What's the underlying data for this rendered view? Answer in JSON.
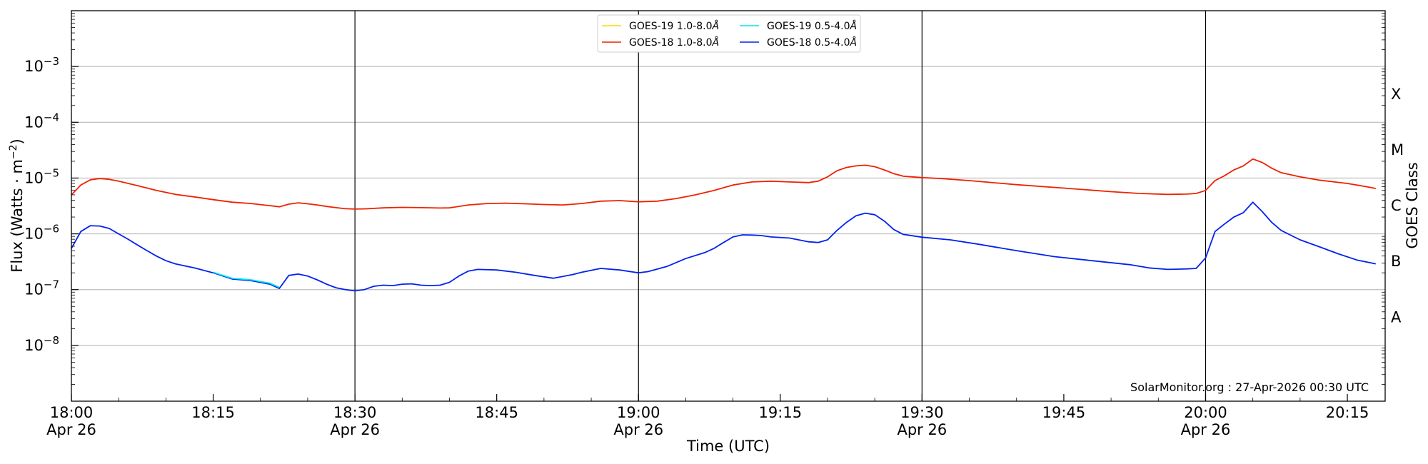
{
  "chart_data": {
    "type": "line",
    "title": "",
    "xlabel": "Time (UTC)",
    "ylabel": "Flux (Watts · m",
    "ylabel_sup": "−2",
    "ylabel_close": ")",
    "y2label": "GOES Class",
    "yscale": "log",
    "ylim": [
      1e-09,
      0.01
    ],
    "xlim": [
      "2026-04-26T18:00",
      "2026-04-26T20:19"
    ],
    "grid": true,
    "legend": "top-center",
    "x_ticks": [
      {
        "time": "18:00",
        "line1": "18:00",
        "line2": "Apr 26"
      },
      {
        "time": "18:15",
        "line1": "18:15",
        "line2": ""
      },
      {
        "time": "18:30",
        "line1": "18:30",
        "line2": "Apr 26"
      },
      {
        "time": "18:45",
        "line1": "18:45",
        "line2": ""
      },
      {
        "time": "19:00",
        "line1": "19:00",
        "line2": "Apr 26"
      },
      {
        "time": "19:15",
        "line1": "19:15",
        "line2": ""
      },
      {
        "time": "19:30",
        "line1": "19:30",
        "line2": "Apr 26"
      },
      {
        "time": "19:45",
        "line1": "19:45",
        "line2": ""
      },
      {
        "time": "20:00",
        "line1": "20:00",
        "line2": "Apr 26"
      },
      {
        "time": "20:15",
        "line1": "20:15",
        "line2": ""
      }
    ],
    "vlines": [
      "18:30",
      "19:00",
      "19:30",
      "20:00"
    ],
    "y_ticks": [
      {
        "value": 0.001,
        "base": "10",
        "exp": "−3"
      },
      {
        "value": 0.0001,
        "base": "10",
        "exp": "−4"
      },
      {
        "value": 1e-05,
        "base": "10",
        "exp": "−5"
      },
      {
        "value": 1e-06,
        "base": "10",
        "exp": "−6"
      },
      {
        "value": 1e-07,
        "base": "10",
        "exp": "−7"
      },
      {
        "value": 1e-08,
        "base": "10",
        "exp": "−8"
      }
    ],
    "goes_classes": [
      {
        "label": "X",
        "value": 0.00032
      },
      {
        "label": "M",
        "value": 3.2e-05
      },
      {
        "label": "C",
        "value": 3.2e-06
      },
      {
        "label": "B",
        "value": 3.2e-07
      },
      {
        "label": "A",
        "value": 3.2e-08
      }
    ],
    "legend_entries": [
      {
        "label": "GOES-19 1.0-8.0",
        "unit": "Å",
        "color": "#ffd700"
      },
      {
        "label": "GOES-19 0.5-4.0",
        "unit": "Å",
        "color": "#00e5ee"
      },
      {
        "label": "GOES-18 1.0-8.0",
        "unit": "Å",
        "color": "#ee2200"
      },
      {
        "label": "GOES-18 0.5-4.0",
        "unit": "Å",
        "color": "#0022ee"
      }
    ],
    "series": [
      {
        "name": "GOES-18 1.0-8.0Å",
        "color": "#ee2200",
        "x": [
          "18:00",
          "18:01",
          "18:02",
          "18:03",
          "18:04",
          "18:05",
          "18:07",
          "18:09",
          "18:11",
          "18:13",
          "18:15",
          "18:17",
          "18:19",
          "18:21",
          "18:22",
          "18:23",
          "18:24",
          "18:25",
          "18:26",
          "18:27",
          "18:28",
          "18:29",
          "18:30",
          "18:31",
          "18:33",
          "18:35",
          "18:37",
          "18:39",
          "18:40",
          "18:42",
          "18:44",
          "18:46",
          "18:48",
          "18:50",
          "18:52",
          "18:54",
          "18:56",
          "18:58",
          "19:00",
          "19:02",
          "19:04",
          "19:06",
          "19:08",
          "19:10",
          "19:12",
          "19:14",
          "19:16",
          "19:18",
          "19:19",
          "19:20",
          "19:21",
          "19:22",
          "19:23",
          "19:24",
          "19:25",
          "19:26",
          "19:27",
          "19:28",
          "19:30",
          "19:32",
          "19:35",
          "19:40",
          "19:45",
          "19:50",
          "19:53",
          "19:56",
          "19:58",
          "19:59",
          "20:00",
          "20:01",
          "20:02",
          "20:03",
          "20:04",
          "20:05",
          "20:06",
          "20:07",
          "20:08",
          "20:10",
          "20:12",
          "20:15",
          "20:17",
          "20:18"
        ],
        "values": [
          5e-06,
          7.5e-06,
          9.3e-06,
          9.8e-06,
          9.5e-06,
          8.8e-06,
          7.3e-06,
          6e-06,
          5.1e-06,
          4.6e-06,
          4.1e-06,
          3.7e-06,
          3.5e-06,
          3.2e-06,
          3.05e-06,
          3.4e-06,
          3.6e-06,
          3.45e-06,
          3.3e-06,
          3.1e-06,
          2.95e-06,
          2.82e-06,
          2.78e-06,
          2.8e-06,
          2.92e-06,
          2.98e-06,
          2.95e-06,
          2.9e-06,
          2.92e-06,
          3.3e-06,
          3.5e-06,
          3.55e-06,
          3.45e-06,
          3.35e-06,
          3.3e-06,
          3.5e-06,
          3.85e-06,
          3.95e-06,
          3.75e-06,
          3.85e-06,
          4.3e-06,
          5e-06,
          6e-06,
          7.5e-06,
          8.5e-06,
          8.8e-06,
          8.5e-06,
          8.3e-06,
          8.8e-06,
          1.05e-05,
          1.35e-05,
          1.55e-05,
          1.65e-05,
          1.7e-05,
          1.6e-05,
          1.4e-05,
          1.2e-05,
          1.08e-05,
          1.02e-05,
          9.8e-06,
          9e-06,
          7.6e-06,
          6.6e-06,
          5.7e-06,
          5.3e-06,
          5.1e-06,
          5.15e-06,
          5.3e-06,
          6e-06,
          9e-06,
          1.1e-05,
          1.4e-05,
          1.65e-05,
          2.2e-05,
          1.9e-05,
          1.5e-05,
          1.25e-05,
          1.05e-05,
          9.2e-06,
          8e-06,
          7e-06,
          6.5e-06
        ]
      },
      {
        "name": "GOES-18 0.5-4.0Å",
        "color": "#0022ee",
        "x": [
          "18:00",
          "18:01",
          "18:02",
          "18:03",
          "18:04",
          "18:05",
          "18:06",
          "18:07",
          "18:08",
          "18:09",
          "18:10",
          "18:11",
          "18:13",
          "18:15",
          "18:17",
          "18:19",
          "18:21",
          "18:22",
          "18:23",
          "18:24",
          "18:25",
          "18:26",
          "18:27",
          "18:28",
          "18:29",
          "18:30",
          "18:31",
          "18:32",
          "18:33",
          "18:34",
          "18:35",
          "18:36",
          "18:37",
          "18:38",
          "18:39",
          "18:40",
          "18:41",
          "18:42",
          "18:43",
          "18:45",
          "18:47",
          "18:49",
          "18:51",
          "18:53",
          "18:54",
          "18:56",
          "18:58",
          "19:00",
          "19:01",
          "19:03",
          "19:05",
          "19:07",
          "19:08",
          "19:09",
          "19:10",
          "19:11",
          "19:12",
          "19:13",
          "19:14",
          "19:16",
          "19:18",
          "19:19",
          "19:20",
          "19:21",
          "19:22",
          "19:23",
          "19:24",
          "19:25",
          "19:26",
          "19:27",
          "19:28",
          "19:30",
          "19:33",
          "19:36",
          "19:40",
          "19:44",
          "19:48",
          "19:52",
          "19:54",
          "19:56",
          "19:58",
          "19:59",
          "20:00",
          "20:01",
          "20:02",
          "20:03",
          "20:04",
          "20:05",
          "20:06",
          "20:07",
          "20:08",
          "20:10",
          "20:12",
          "20:14",
          "20:16",
          "20:18"
        ],
        "values": [
          5.5e-07,
          1.1e-06,
          1.4e-06,
          1.38e-06,
          1.25e-06,
          1e-06,
          8e-07,
          6.3e-07,
          5e-07,
          4e-07,
          3.3e-07,
          2.9e-07,
          2.45e-07,
          2e-07,
          1.55e-07,
          1.45e-07,
          1.25e-07,
          1.05e-07,
          1.8e-07,
          1.9e-07,
          1.75e-07,
          1.5e-07,
          1.25e-07,
          1.08e-07,
          1e-07,
          9.5e-08,
          1e-07,
          1.15e-07,
          1.2e-07,
          1.18e-07,
          1.25e-07,
          1.27e-07,
          1.2e-07,
          1.18e-07,
          1.2e-07,
          1.35e-07,
          1.75e-07,
          2.15e-07,
          2.3e-07,
          2.25e-07,
          2.05e-07,
          1.8e-07,
          1.6e-07,
          1.85e-07,
          2.05e-07,
          2.4e-07,
          2.25e-07,
          2e-07,
          2.1e-07,
          2.6e-07,
          3.6e-07,
          4.6e-07,
          5.5e-07,
          7e-07,
          8.8e-07,
          9.6e-07,
          9.5e-07,
          9.3e-07,
          8.8e-07,
          8.4e-07,
          7.2e-07,
          7e-07,
          7.8e-07,
          1.15e-06,
          1.6e-06,
          2.1e-06,
          2.35e-06,
          2.2e-06,
          1.7e-06,
          1.2e-06,
          9.8e-07,
          8.7e-07,
          7.8e-07,
          6.5e-07,
          5e-07,
          3.9e-07,
          3.3e-07,
          2.8e-07,
          2.45e-07,
          2.3e-07,
          2.35e-07,
          2.4e-07,
          3.7e-07,
          1.1e-06,
          1.5e-06,
          2e-06,
          2.4e-06,
          3.7e-06,
          2.5e-06,
          1.6e-06,
          1.15e-06,
          7.8e-07,
          5.9e-07,
          4.4e-07,
          3.4e-07,
          2.9e-07
        ]
      },
      {
        "name": "GOES-19 0.5-4.0Å",
        "color": "#00e5ee",
        "x": [
          "18:15",
          "18:17",
          "18:19",
          "18:21",
          "18:22"
        ],
        "values": [
          2.05e-07,
          1.6e-07,
          1.5e-07,
          1.3e-07,
          1.1e-07
        ]
      }
    ]
  },
  "watermark": "SolarMonitor.org : 27-Apr-2026 00:30 UTC"
}
